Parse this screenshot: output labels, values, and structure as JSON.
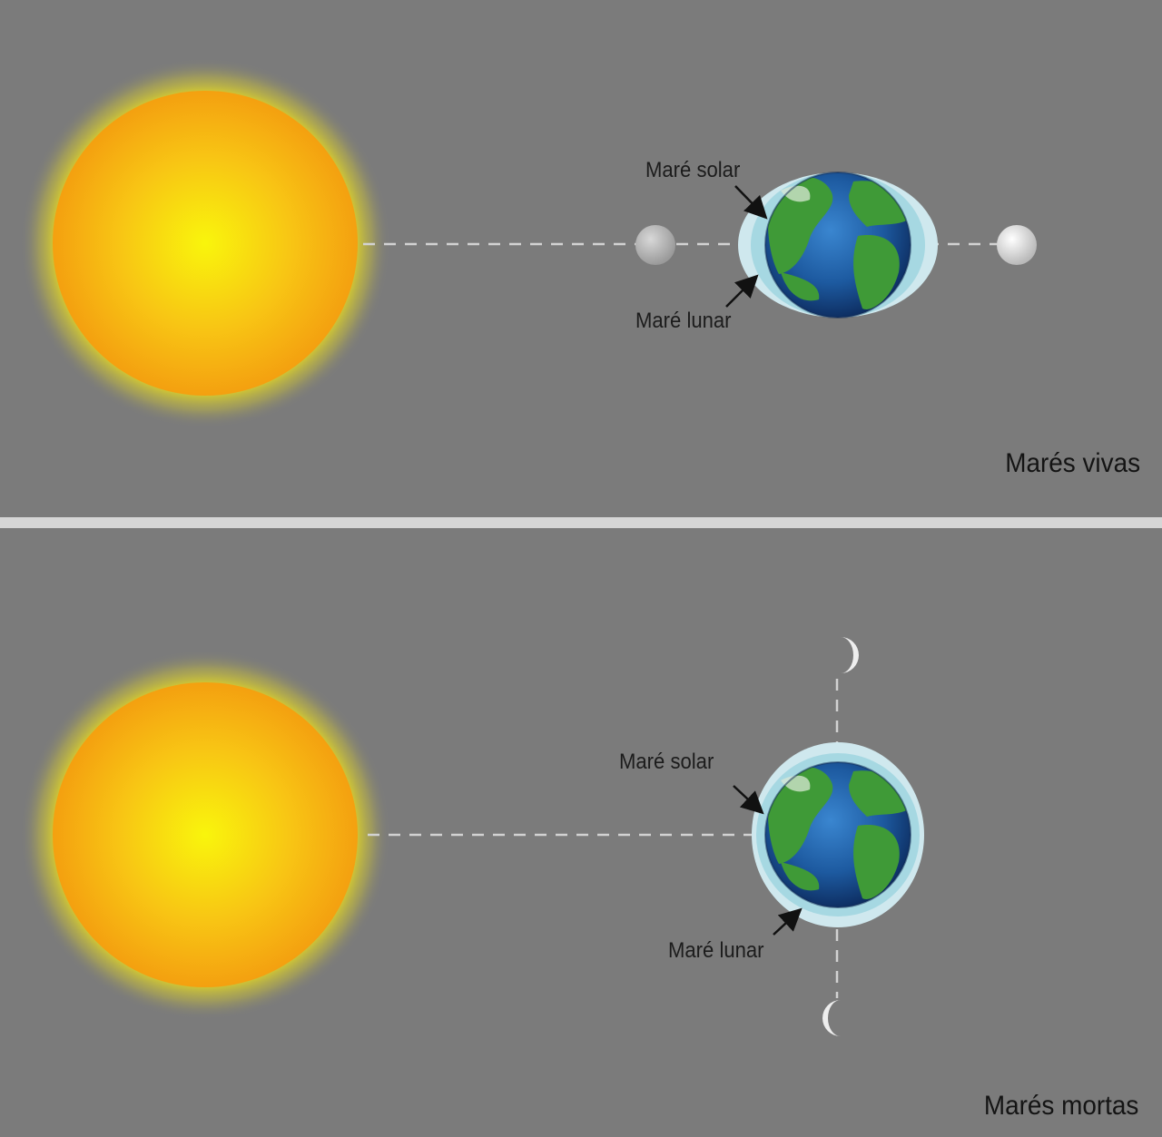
{
  "panels": [
    {
      "title": "Marés vivas",
      "solar_tide_label": "Maré solar",
      "lunar_tide_label": "Maré lunar"
    },
    {
      "title": "Marés mortas",
      "solar_tide_label": "Maré solar",
      "lunar_tide_label": "Maré lunar"
    }
  ],
  "colors": {
    "background": "#7b7b7b",
    "divider": "#d6d6d6",
    "sun_core": "#f8f20c",
    "sun_edge": "#f5a312",
    "ocean": "#1f5fa8",
    "land": "#3f9a37",
    "tide_bulge": "#cfe8ee",
    "moon": "#e8e8e8"
  }
}
